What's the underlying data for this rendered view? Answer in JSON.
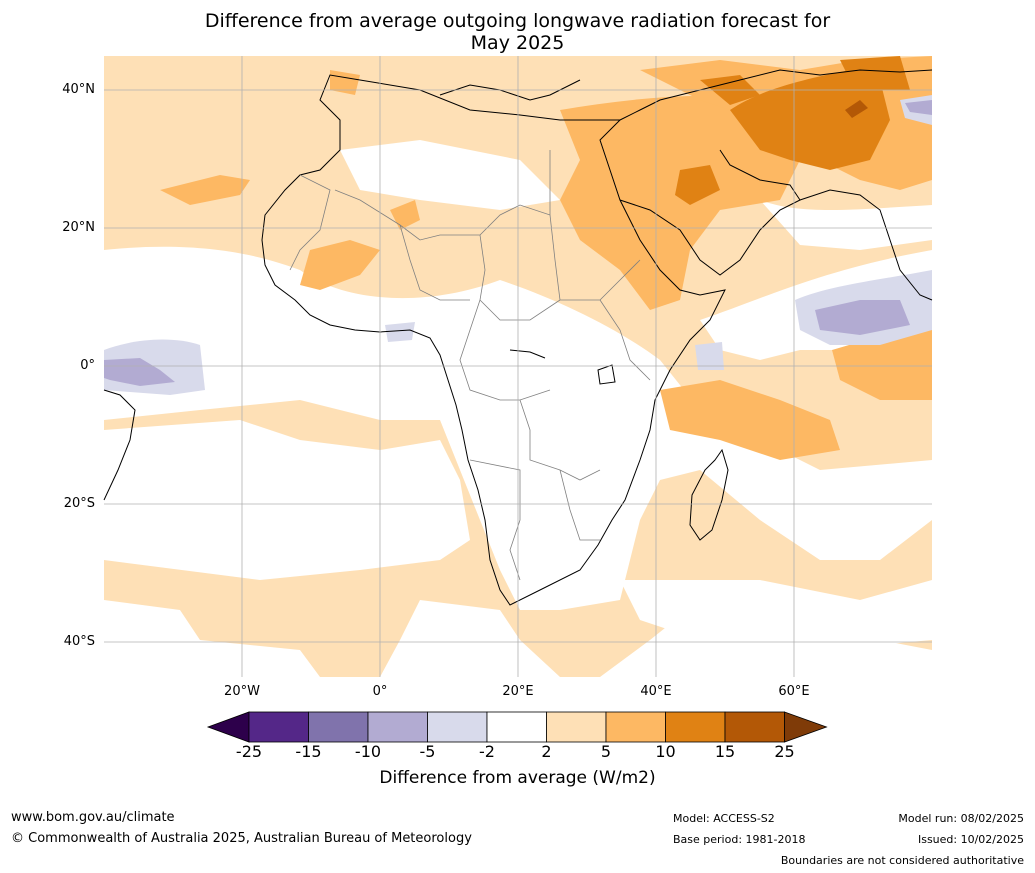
{
  "title_line1": "Difference from average outgoing longwave radiation forecast for",
  "title_line2": "May 2025",
  "map": {
    "region": "Africa",
    "lat_ticks": [
      "40°N",
      "20°N",
      "0°",
      "20°S",
      "40°S"
    ],
    "lon_ticks": [
      "20°W",
      "0°",
      "20°E",
      "40°E",
      "60°E"
    ],
    "grid": true
  },
  "colorbar": {
    "title": "Difference from average (W/m2)",
    "labels": [
      "-25",
      "-15",
      "-10",
      "-5",
      "-2",
      "2",
      "5",
      "10",
      "15",
      "25"
    ],
    "colors": [
      "#2d004b",
      "#542788",
      "#8073ac",
      "#b2abd2",
      "#d8daeb",
      "#ffffff",
      "#fee0b6",
      "#fdb863",
      "#e08214",
      "#b35806",
      "#7f3b08"
    ]
  },
  "footer": {
    "website": "www.bom.gov.au/climate",
    "copyright": "© Commonwealth of Australia 2025, Australian Bureau of Meteorology",
    "model": "Model: ACCESS-S2",
    "base_period": "Base period: 1981-2018",
    "model_run": "Model run: 08/02/2025",
    "issued": "Issued: 10/02/2025",
    "disclaimer": "Boundaries are not considered authoritative"
  }
}
